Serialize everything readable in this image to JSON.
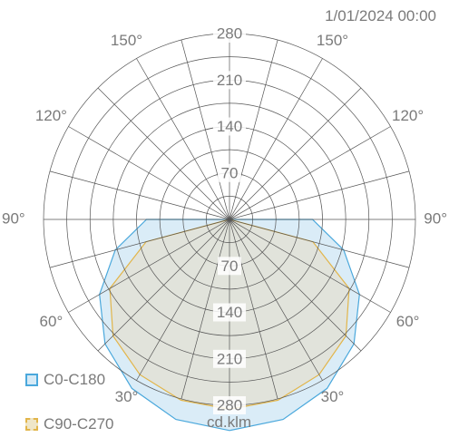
{
  "timestamp": "1/01/2024 00:00",
  "unit": "cd.klm",
  "colors": {
    "c0_c180_fill": "#d6eaf6",
    "c0_c180_stroke": "#4aa8dc",
    "c90_c270_fill": "#e2e2d6",
    "c90_c270_stroke": "#e2b54a",
    "grid": "#555555",
    "label": "#7a7a7a"
  },
  "chart_data": {
    "type": "polar",
    "radial_max": 280,
    "radial_ticks": [
      70,
      140,
      210,
      280
    ],
    "radial_tick_labels": [
      "70",
      "140",
      "210",
      "280"
    ],
    "angle_step_deg": 15,
    "angle_labels": [
      {
        "angle": 150,
        "text": "150°",
        "side": "left"
      },
      {
        "angle": 150,
        "text": "150°",
        "side": "right"
      },
      {
        "angle": 120,
        "text": "120°",
        "side": "left"
      },
      {
        "angle": 120,
        "text": "120°",
        "side": "right"
      },
      {
        "angle": 90,
        "text": "90°",
        "side": "left"
      },
      {
        "angle": 90,
        "text": "90°",
        "side": "right"
      },
      {
        "angle": 60,
        "text": "60°",
        "side": "left"
      },
      {
        "angle": 60,
        "text": "60°",
        "side": "right"
      },
      {
        "angle": 30,
        "text": "30°",
        "side": "left"
      },
      {
        "angle": 30,
        "text": "30°",
        "side": "right"
      }
    ],
    "series": [
      {
        "name": "C0-C180",
        "angles": [
          0,
          15,
          30,
          45,
          60,
          75,
          90
        ],
        "values": [
          318,
          312,
          294,
          265,
          226,
          178,
          125
        ]
      },
      {
        "name": "C90-C270",
        "angles": [
          0,
          15,
          30,
          45,
          60,
          75,
          90
        ],
        "values": [
          286,
          282,
          270,
          248,
          208,
          130,
          0
        ]
      }
    ]
  }
}
